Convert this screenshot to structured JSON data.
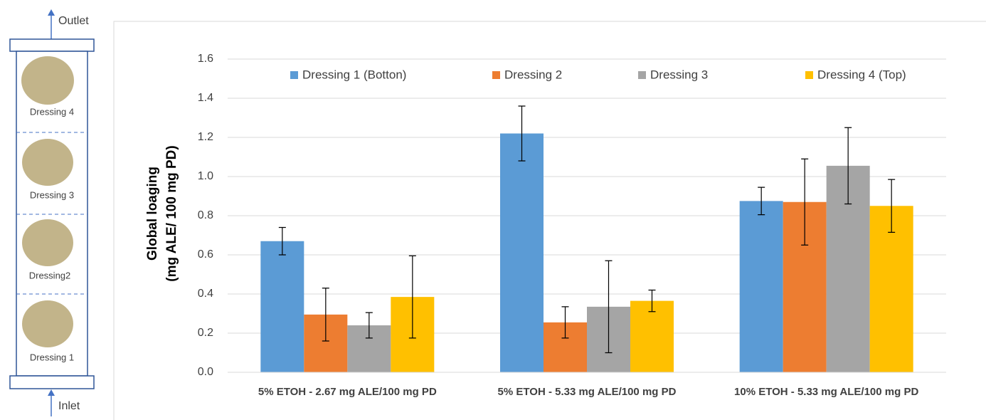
{
  "diagram": {
    "outlet": "Outlet",
    "inlet": "Inlet",
    "dressings": [
      "Dressing 4",
      "Dressing 3",
      "Dressing2",
      "Dressing 1"
    ]
  },
  "chart_data": {
    "type": "bar",
    "ylabel": [
      "Global loaging",
      "(mg ALE/ 100 mg PD)"
    ],
    "categories": [
      "5% ETOH - 2.67 mg ALE/100 mg PD",
      "5% ETOH - 5.33 mg ALE/100 mg PD",
      "10% ETOH - 5.33 mg ALE/100 mg PD"
    ],
    "series": [
      {
        "name": "Dressing 1 (Botton)",
        "color": "#5b9bd5",
        "values": [
          0.67,
          1.22,
          0.875
        ],
        "errors": [
          0.07,
          0.14,
          0.07
        ]
      },
      {
        "name": "Dressing 2",
        "color": "#ed7d31",
        "values": [
          0.295,
          0.255,
          0.87
        ],
        "errors": [
          0.135,
          0.08,
          0.22
        ]
      },
      {
        "name": "Dressing 3",
        "color": "#a5a5a5",
        "values": [
          0.24,
          0.335,
          1.055
        ],
        "errors": [
          0.065,
          0.235,
          0.195
        ]
      },
      {
        "name": "Dressing 4 (Top)",
        "color": "#ffc000",
        "values": [
          0.385,
          0.365,
          0.85
        ],
        "errors": [
          0.21,
          0.055,
          0.135
        ]
      }
    ],
    "ylim": [
      0,
      1.6
    ],
    "yticks": [
      {
        "value": 0,
        "label": "0.0"
      },
      0.2,
      0.4,
      0.6,
      0.8,
      {
        "value": 1,
        "label": "1.0"
      },
      1.2,
      1.4,
      1.6
    ],
    "grid": true,
    "legend": "top"
  }
}
